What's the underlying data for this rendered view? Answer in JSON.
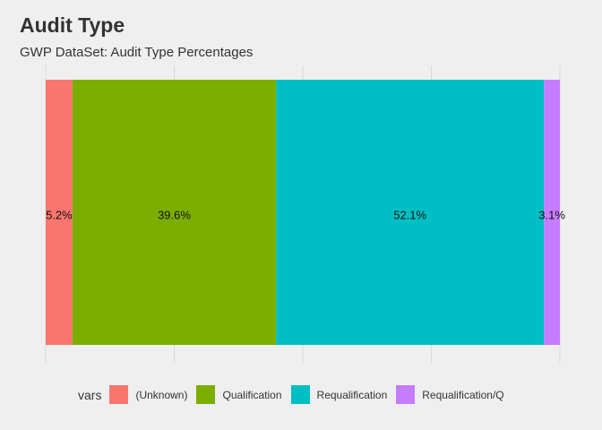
{
  "title": "Audit Type",
  "subtitle": "GWP DataSet: Audit Type Percentages",
  "legend": {
    "title": "vars"
  },
  "chart_data": {
    "type": "bar",
    "orientation": "horizontal-stacked",
    "xlim": [
      0,
      1
    ],
    "grid": true,
    "legend_position": "bottom",
    "series": [
      {
        "name": "(Unknown)",
        "value": 5.2,
        "label": "5.2%",
        "color": "#F8766D"
      },
      {
        "name": "Qualification",
        "value": 39.6,
        "label": "39.6%",
        "color": "#7CAE00"
      },
      {
        "name": "Requalification",
        "value": 52.1,
        "label": "52.1%",
        "color": "#00BFC4"
      },
      {
        "name": "Requalification/Q",
        "value": 3.1,
        "label": "3.1%",
        "color": "#C77CFF"
      }
    ]
  }
}
